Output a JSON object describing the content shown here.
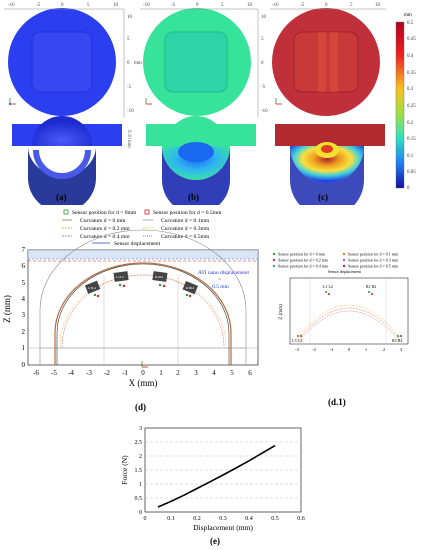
{
  "panels": {
    "a": "(a)",
    "b": "(b)",
    "c": "(c)",
    "d": "(d)",
    "d1": "(d.1)",
    "e": "(e)"
  },
  "sim": {
    "tick_labels": [
      "-10",
      "-5",
      "0",
      "5",
      "10"
    ],
    "unit_mm": "mm",
    "side_unit": "0.10 mm",
    "colors": {
      "a": "#2b3ff0",
      "b": "#37e39a",
      "c": "#c0303a"
    }
  },
  "colorbar": {
    "unit": "mm",
    "ticks": [
      "0.5",
      "0.45",
      "0.4",
      "0.35",
      "0.3",
      "0.25",
      "0.2",
      "0.15",
      "0.1",
      "0.05",
      "0"
    ]
  },
  "legend_d": [
    "Sensor position for d = 0mm",
    "Sensor position for d = 0.5mm",
    "Curvature d = 0 mm",
    "Curvature d = 0.1mm",
    "Curvature d = 0.2 mm",
    "Curvature d = 0.3mm",
    "Curvature d = 0.4 mm",
    "Curvature d = 0.5mm",
    "Sensor displacement"
  ],
  "chart_d": {
    "xlabel": "X (mm)",
    "ylabel": "Z (mm)",
    "xticks": [
      "-6",
      "-5",
      "-4",
      "-3",
      "-2",
      "-1",
      "0",
      "1",
      "2",
      "3",
      "4",
      "5",
      "6"
    ],
    "yticks": [
      "0",
      "1",
      "2",
      "3",
      "4",
      "5",
      "6",
      "7"
    ],
    "annotation": [
      "ATI nano displacement",
      "=",
      "0.5 mm"
    ],
    "sensors": [
      "L1L2",
      "R1R2",
      "L3L4",
      "R3R4"
    ]
  },
  "legend_d1": [
    "Sensor position for d = 0 mm",
    "Sensor position for d = 0.1 mm",
    "Sensor position for d = 0.2 mm",
    "Sensor position for d = 0.3 mm",
    "Sensor position for d = 0.4 mm",
    "Sensor position for d = 0.5 mm",
    "Sensor displacement"
  ],
  "chart_d1": {
    "xticks": [
      "-3",
      "-2",
      "-1",
      "0",
      "1",
      "2",
      "3"
    ],
    "ylabel": "Z (mm)",
    "sensors": [
      "L1 L2",
      "R1 R2",
      "L3 L4",
      "R3 R4"
    ]
  },
  "chart_data": {
    "type": "line",
    "xlabel": "Displacement (mm)",
    "ylabel": "Force (N)",
    "xlim": [
      0,
      0.6
    ],
    "ylim": [
      0,
      3
    ],
    "xticks": [
      "0",
      "0.1",
      "0.2",
      "0.3",
      "0.4",
      "0.5",
      "0.6"
    ],
    "yticks": [
      "0",
      "0.5",
      "1",
      "1.5",
      "2",
      "2.5",
      "3"
    ],
    "series": [
      {
        "x": [
          0.05,
          0.1,
          0.15,
          0.2,
          0.25,
          0.3,
          0.35,
          0.4,
          0.45,
          0.5
        ],
        "y": [
          0.18,
          0.38,
          0.6,
          0.84,
          1.08,
          1.32,
          1.57,
          1.83,
          2.1,
          2.37
        ]
      }
    ]
  }
}
